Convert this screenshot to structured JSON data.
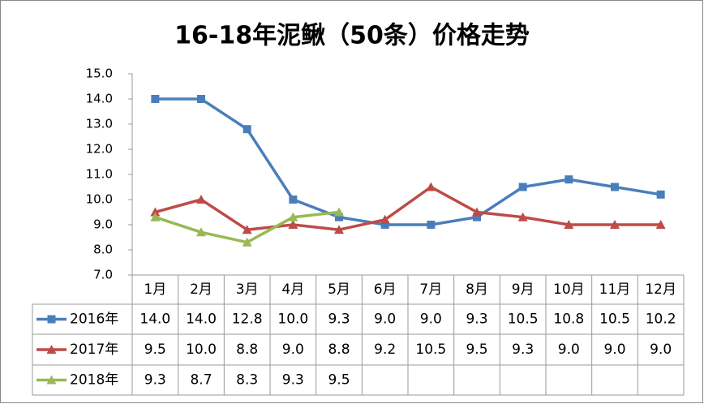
{
  "chart_data": {
    "type": "line",
    "title": "16-18年泥鳅（50条）价格走势",
    "categories": [
      "1月",
      "2月",
      "3月",
      "4月",
      "5月",
      "6月",
      "7月",
      "8月",
      "9月",
      "10月",
      "11月",
      "12月"
    ],
    "series": [
      {
        "name": "2016年",
        "color": "#4a7ebb",
        "marker": "square",
        "values": [
          14.0,
          14.0,
          12.8,
          10.0,
          9.3,
          9.0,
          9.0,
          9.3,
          10.5,
          10.8,
          10.5,
          10.2
        ],
        "value_labels": [
          "14.0",
          "14.0",
          "12.8",
          "10.0",
          "9.3",
          "9.0",
          "9.0",
          "9.3",
          "10.5",
          "10.8",
          "10.5",
          "10.2"
        ]
      },
      {
        "name": "2017年",
        "color": "#be4b48",
        "marker": "triangle",
        "values": [
          9.5,
          10.0,
          8.8,
          9.0,
          8.8,
          9.2,
          10.5,
          9.5,
          9.3,
          9.0,
          9.0,
          9.0
        ],
        "value_labels": [
          "9.5",
          "10.0",
          "8.8",
          "9.0",
          "8.8",
          "9.2",
          "10.5",
          "9.5",
          "9.3",
          "9.0",
          "9.0",
          "9.0"
        ]
      },
      {
        "name": "2018年",
        "color": "#98b954",
        "marker": "triangle",
        "values": [
          9.3,
          8.7,
          8.3,
          9.3,
          9.5,
          null,
          null,
          null,
          null,
          null,
          null,
          null
        ],
        "value_labels": [
          "9.3",
          "8.7",
          "8.3",
          "9.3",
          "9.5",
          null,
          null,
          null,
          null,
          null,
          null,
          null
        ]
      }
    ],
    "ylim": [
      7,
      15
    ],
    "yticks": [
      {
        "value": 7,
        "label": "7.0"
      },
      {
        "value": 8,
        "label": "8.0"
      },
      {
        "value": 9,
        "label": "9.0"
      },
      {
        "value": 10,
        "label": "10.0"
      },
      {
        "value": 11,
        "label": "11.0"
      },
      {
        "value": 12,
        "label": "12.0"
      },
      {
        "value": 13,
        "label": "13.0"
      },
      {
        "value": 14,
        "label": "14.0"
      },
      {
        "value": 15,
        "label": "15.0"
      }
    ],
    "grid": false
  }
}
